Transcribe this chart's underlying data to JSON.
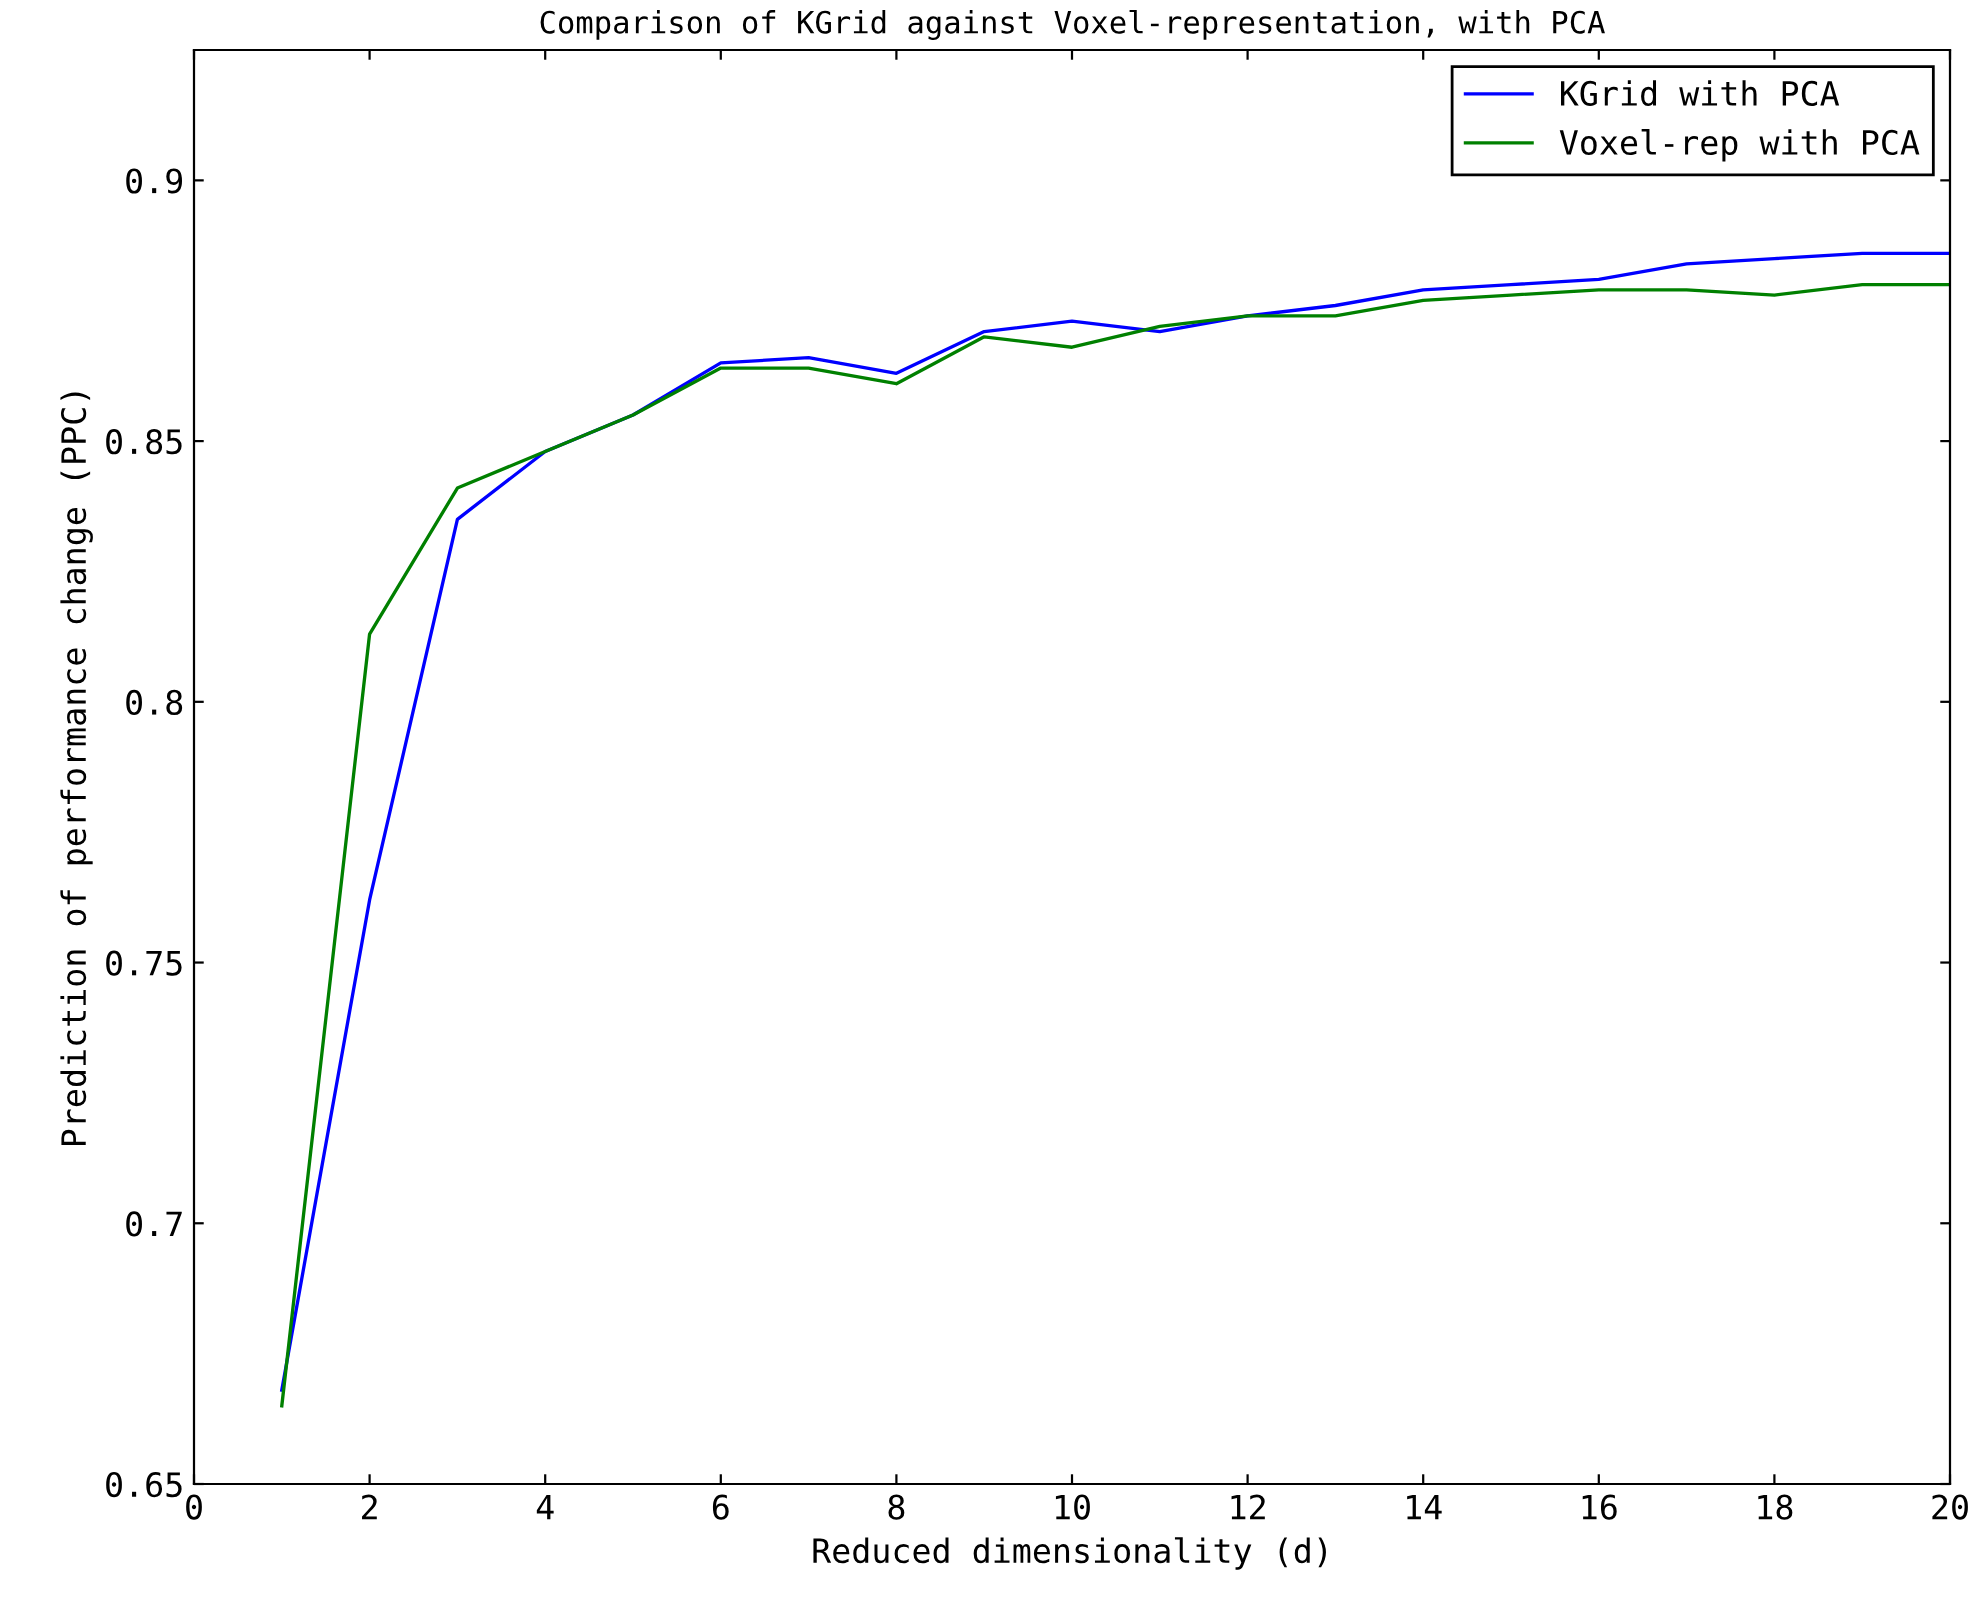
{
  "chart_data": {
    "type": "line",
    "title": "Comparison of KGrid against Voxel-representation, with PCA",
    "xlabel": "Reduced dimensionality (d)",
    "ylabel": "Prediction of performance change (PPC)",
    "x": [
      1,
      2,
      3,
      4,
      5,
      6,
      7,
      8,
      9,
      10,
      11,
      12,
      13,
      14,
      15,
      16,
      17,
      18,
      19,
      20
    ],
    "series": [
      {
        "name": "KGrid with PCA",
        "color": "#0000ff",
        "values": [
          0.668,
          0.762,
          0.835,
          0.848,
          0.855,
          0.865,
          0.866,
          0.863,
          0.871,
          0.873,
          0.871,
          0.874,
          0.876,
          0.879,
          0.88,
          0.881,
          0.884,
          0.885,
          0.886,
          0.886
        ]
      },
      {
        "name": "Voxel-rep with PCA",
        "color": "#008000",
        "values": [
          0.665,
          0.813,
          0.841,
          0.848,
          0.855,
          0.864,
          0.864,
          0.861,
          0.87,
          0.868,
          0.872,
          0.874,
          0.874,
          0.877,
          0.878,
          0.879,
          0.879,
          0.878,
          0.88,
          0.88
        ]
      }
    ],
    "xlim": [
      0,
      20
    ],
    "xticks": [
      0,
      2,
      4,
      6,
      8,
      10,
      12,
      14,
      16,
      18,
      20
    ],
    "ylim": [
      0.65,
      0.925
    ],
    "yticks": [
      {
        "value": 0.65,
        "label": "0.65"
      },
      {
        "value": 0.7,
        "label": "0.7"
      },
      {
        "value": 0.75,
        "label": "0.75"
      },
      {
        "value": 0.8,
        "label": "0.8"
      },
      {
        "value": 0.85,
        "label": "0.85"
      },
      {
        "value": 0.9,
        "label": "0.9"
      }
    ],
    "grid": false,
    "legend": "top right",
    "marker": "none",
    "line_style": "solid"
  }
}
